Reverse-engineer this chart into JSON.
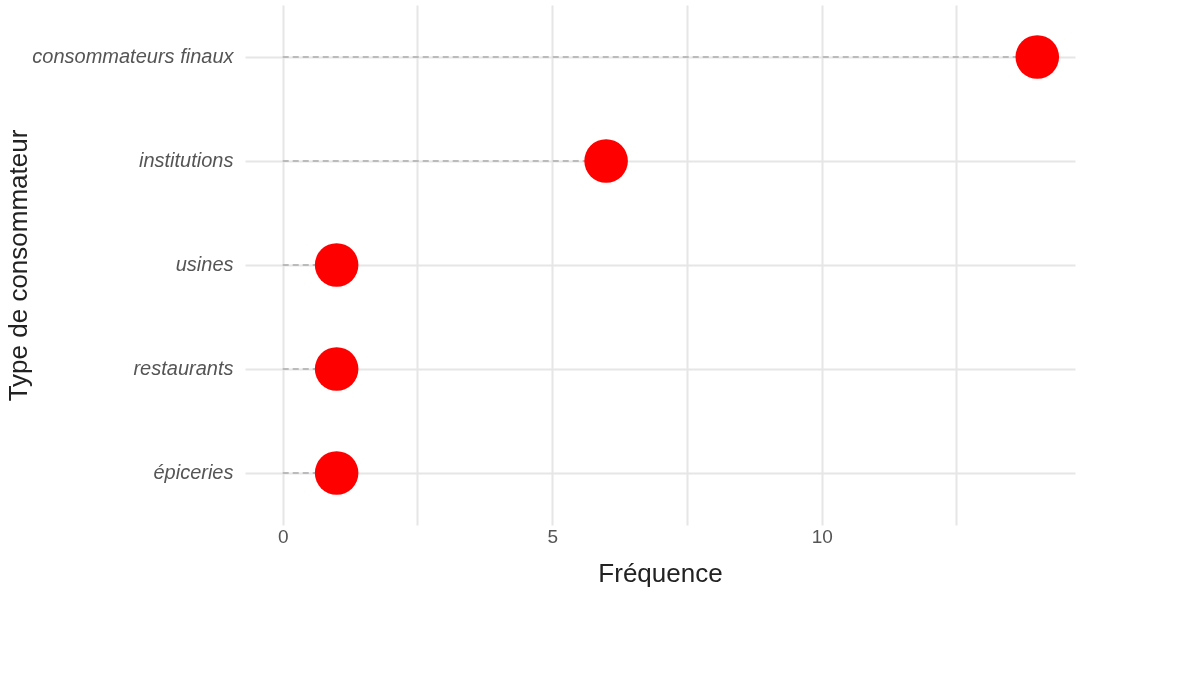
{
  "chart_data": {
    "type": "lollipop",
    "xlabel": "Fréquence",
    "ylabel": "Type de consommateur",
    "categories": [
      "consommateurs finaux",
      "institutions",
      "usines",
      "restaurants",
      "épiceries"
    ],
    "values": [
      14,
      6,
      1,
      1,
      1
    ],
    "color": "#ff0000",
    "orientation": "horizontal",
    "xlim": [
      -0.7,
      14.7
    ],
    "xticks": [
      0,
      {
        "value": 2.5,
        "label": null
      },
      5,
      {
        "value": 7.5,
        "label": null
      },
      10,
      {
        "value": 12.5,
        "label": null
      }
    ],
    "grid": true,
    "marker": "circle",
    "line_style": "dashed"
  }
}
